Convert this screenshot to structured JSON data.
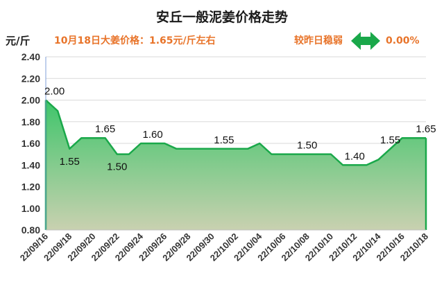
{
  "header": {
    "title": "安丘一般泥姜价格走势",
    "unit": "元/斤",
    "price_note": "10月18日大姜价格：1.65元/斤左右",
    "trend_text": "较昨日稳弱",
    "trend_icon": "double-arrow-icon",
    "trend_icon_color": "#1aa84a",
    "change_pct": "0.00%"
  },
  "chart_data": {
    "type": "area",
    "ylim": [
      0.8,
      2.4
    ],
    "yticks": [
      "0.80",
      "1.00",
      "1.20",
      "1.40",
      "1.60",
      "1.80",
      "2.00",
      "2.20",
      "2.40"
    ],
    "x_tick_labels": [
      "22/09/16",
      "22/09/18",
      "22/09/20",
      "22/09/22",
      "22/09/24",
      "22/09/26",
      "22/09/28",
      "22/09/30",
      "22/10/02",
      "22/10/04",
      "22/10/06",
      "22/10/08",
      "22/10/10",
      "22/10/12",
      "22/10/14",
      "22/10/16",
      "22/10/18"
    ],
    "x": [
      "22/09/16",
      "22/09/17",
      "22/09/18",
      "22/09/19",
      "22/09/20",
      "22/09/21",
      "22/09/22",
      "22/09/23",
      "22/09/24",
      "22/09/25",
      "22/09/26",
      "22/09/27",
      "22/09/28",
      "22/09/29",
      "22/09/30",
      "22/10/01",
      "22/10/02",
      "22/10/03",
      "22/10/04",
      "22/10/05",
      "22/10/06",
      "22/10/07",
      "22/10/08",
      "22/10/09",
      "22/10/10",
      "22/10/11",
      "22/10/12",
      "22/10/13",
      "22/10/14",
      "22/10/15",
      "22/10/16",
      "22/10/17",
      "22/10/18"
    ],
    "values": [
      2.0,
      1.9,
      1.55,
      1.65,
      1.65,
      1.65,
      1.5,
      1.5,
      1.6,
      1.6,
      1.6,
      1.55,
      1.55,
      1.55,
      1.55,
      1.55,
      1.55,
      1.55,
      1.6,
      1.5,
      1.5,
      1.5,
      1.5,
      1.5,
      1.5,
      1.4,
      1.4,
      1.4,
      1.45,
      1.55,
      1.65,
      1.65,
      1.65
    ],
    "data_labels": [
      {
        "x": "22/09/16",
        "text": "2.00",
        "pos": "above"
      },
      {
        "x": "22/09/18",
        "text": "1.55",
        "pos": "below"
      },
      {
        "x": "22/09/21",
        "text": "1.65",
        "pos": "above"
      },
      {
        "x": "22/09/22",
        "text": "1.50",
        "pos": "below"
      },
      {
        "x": "22/09/25",
        "text": "1.60",
        "pos": "above"
      },
      {
        "x": "22/10/01",
        "text": "1.55",
        "pos": "above"
      },
      {
        "x": "22/10/08",
        "text": "1.50",
        "pos": "above"
      },
      {
        "x": "22/10/12",
        "text": "1.40",
        "pos": "above"
      },
      {
        "x": "22/10/15",
        "text": "1.55",
        "pos": "above"
      },
      {
        "x": "22/10/18",
        "text": "1.65",
        "pos": "above"
      }
    ],
    "line_color": "#1aa84a",
    "fill_top_color": "#3fc56b",
    "fill_bottom_color": "#c9d1b0",
    "grid": true
  }
}
